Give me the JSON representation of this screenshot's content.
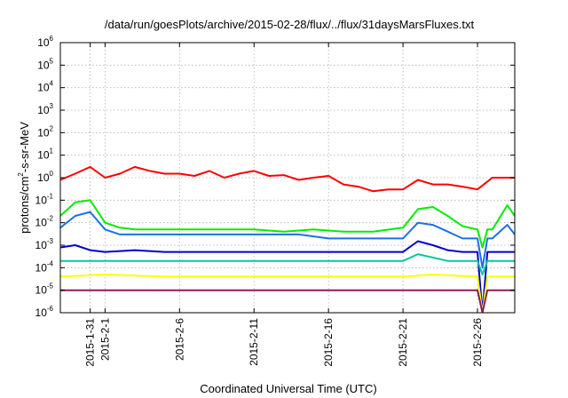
{
  "chart_data": {
    "type": "line",
    "title": "/data/run/goesPlots/archive/2015-02-28/flux/../flux/31daysMarsFluxes.txt",
    "xlabel": "Coordinated Universal Time (UTC)",
    "ylabel": "protons/cm2-s-sr-MeV",
    "ylabel_parts": {
      "a": "protons/cm",
      "sup": "2",
      "b": "-s-sr-MeV"
    },
    "yscale": "log",
    "ylim": [
      1e-06,
      1000000.0
    ],
    "xlim": [
      "2015-01-29",
      "2015-02-28T12:00"
    ],
    "grid": true,
    "y_ticks": [
      {
        "base": "10",
        "exp": "-6"
      },
      {
        "base": "10",
        "exp": "-5"
      },
      {
        "base": "10",
        "exp": "-4"
      },
      {
        "base": "10",
        "exp": "-3"
      },
      {
        "base": "10",
        "exp": "-2"
      },
      {
        "base": "10",
        "exp": "-1"
      },
      {
        "base": "10",
        "exp": "0"
      },
      {
        "base": "10",
        "exp": "1"
      },
      {
        "base": "10",
        "exp": "2"
      },
      {
        "base": "10",
        "exp": "3"
      },
      {
        "base": "10",
        "exp": "4"
      },
      {
        "base": "10",
        "exp": "5"
      },
      {
        "base": "10",
        "exp": "6"
      }
    ],
    "x_ticks": [
      {
        "date": "2015-01-31",
        "label": "2015-1-31"
      },
      {
        "date": "2015-02-01",
        "label": "2015-2-1"
      },
      {
        "date": "2015-02-06",
        "label": "2015-2-6"
      },
      {
        "date": "2015-02-11",
        "label": "2015-2-11"
      },
      {
        "date": "2015-02-16",
        "label": "2015-2-16"
      },
      {
        "date": "2015-02-21",
        "label": "2015-2-21"
      },
      {
        "date": "2015-02-26",
        "label": "2015-2-26"
      }
    ],
    "series": [
      {
        "color": "#ff0000",
        "points": [
          [
            "2015-01-29",
            0.8
          ],
          [
            "2015-01-30",
            1.5
          ],
          [
            "2015-01-31",
            3
          ],
          [
            "2015-02-01",
            1
          ],
          [
            "2015-02-02",
            1.5
          ],
          [
            "2015-02-03",
            3
          ],
          [
            "2015-02-04",
            2
          ],
          [
            "2015-02-05",
            1.5
          ],
          [
            "2015-02-06",
            1.5
          ],
          [
            "2015-02-07",
            1.2
          ],
          [
            "2015-02-08",
            2
          ],
          [
            "2015-02-09",
            1
          ],
          [
            "2015-02-10",
            1.5
          ],
          [
            "2015-02-11",
            2
          ],
          [
            "2015-02-12",
            1.2
          ],
          [
            "2015-02-13",
            1.3
          ],
          [
            "2015-02-14",
            0.8
          ],
          [
            "2015-02-15",
            1
          ],
          [
            "2015-02-16",
            1.2
          ],
          [
            "2015-02-17",
            0.5
          ],
          [
            "2015-02-18",
            0.4
          ],
          [
            "2015-02-19",
            0.25
          ],
          [
            "2015-02-20",
            0.3
          ],
          [
            "2015-02-21",
            0.3
          ],
          [
            "2015-02-22",
            0.8
          ],
          [
            "2015-02-23",
            0.5
          ],
          [
            "2015-02-24",
            0.5
          ],
          [
            "2015-02-25",
            0.4
          ],
          [
            "2015-02-26",
            0.3
          ],
          [
            "2015-02-27",
            1
          ],
          [
            "2015-02-28T12:00",
            1
          ]
        ]
      },
      {
        "color": "#00ee00",
        "points": [
          [
            "2015-01-29",
            0.02
          ],
          [
            "2015-01-30",
            0.08
          ],
          [
            "2015-01-31",
            0.1
          ],
          [
            "2015-02-01",
            0.01
          ],
          [
            "2015-02-02",
            0.006
          ],
          [
            "2015-02-03",
            0.005
          ],
          [
            "2015-02-05",
            0.005
          ],
          [
            "2015-02-07",
            0.005
          ],
          [
            "2015-02-09",
            0.005
          ],
          [
            "2015-02-11",
            0.005
          ],
          [
            "2015-02-13",
            0.004
          ],
          [
            "2015-02-15",
            0.005
          ],
          [
            "2015-02-17",
            0.004
          ],
          [
            "2015-02-19",
            0.004
          ],
          [
            "2015-02-21",
            0.006
          ],
          [
            "2015-02-22",
            0.04
          ],
          [
            "2015-02-23",
            0.05
          ],
          [
            "2015-02-24",
            0.02
          ],
          [
            "2015-02-25",
            0.007
          ],
          [
            "2015-02-26",
            0.005
          ],
          [
            "2015-02-26T08:00",
            0.0008
          ],
          [
            "2015-02-26T16:00",
            0.005
          ],
          [
            "2015-02-27",
            0.005
          ],
          [
            "2015-02-28",
            0.06
          ],
          [
            "2015-02-28T12:00",
            0.02
          ]
        ]
      },
      {
        "color": "#1e6fe6",
        "points": [
          [
            "2015-01-29",
            0.006
          ],
          [
            "2015-01-30",
            0.02
          ],
          [
            "2015-01-31",
            0.03
          ],
          [
            "2015-02-01",
            0.005
          ],
          [
            "2015-02-02",
            0.003
          ],
          [
            "2015-02-04",
            0.003
          ],
          [
            "2015-02-06",
            0.003
          ],
          [
            "2015-02-08",
            0.003
          ],
          [
            "2015-02-10",
            0.003
          ],
          [
            "2015-02-12",
            0.003
          ],
          [
            "2015-02-14",
            0.003
          ],
          [
            "2015-02-16",
            0.002
          ],
          [
            "2015-02-18",
            0.002
          ],
          [
            "2015-02-20",
            0.002
          ],
          [
            "2015-02-21",
            0.002
          ],
          [
            "2015-02-22",
            0.01
          ],
          [
            "2015-02-23",
            0.008
          ],
          [
            "2015-02-24",
            0.004
          ],
          [
            "2015-02-25",
            0.002
          ],
          [
            "2015-02-26",
            0.002
          ],
          [
            "2015-02-26T08:00",
            0.0001
          ],
          [
            "2015-02-26T16:00",
            0.002
          ],
          [
            "2015-02-27",
            0.002
          ],
          [
            "2015-02-28",
            0.008
          ],
          [
            "2015-02-28T12:00",
            0.003
          ]
        ]
      },
      {
        "color": "#0000cc",
        "points": [
          [
            "2015-01-29",
            0.0008
          ],
          [
            "2015-01-30",
            0.001
          ],
          [
            "2015-01-31",
            0.0006
          ],
          [
            "2015-02-01",
            0.0005
          ],
          [
            "2015-02-03",
            0.0006
          ],
          [
            "2015-02-05",
            0.0005
          ],
          [
            "2015-02-07",
            0.0005
          ],
          [
            "2015-02-09",
            0.0005
          ],
          [
            "2015-02-11",
            0.0005
          ],
          [
            "2015-02-13",
            0.0005
          ],
          [
            "2015-02-15",
            0.0005
          ],
          [
            "2015-02-17",
            0.0005
          ],
          [
            "2015-02-19",
            0.0005
          ],
          [
            "2015-02-21",
            0.0005
          ],
          [
            "2015-02-22",
            0.0015
          ],
          [
            "2015-02-23",
            0.001
          ],
          [
            "2015-02-24",
            0.0006
          ],
          [
            "2015-02-25",
            0.0005
          ],
          [
            "2015-02-26",
            0.0005
          ],
          [
            "2015-02-26T08:00",
            1e-06
          ],
          [
            "2015-02-26T16:00",
            0.0005
          ],
          [
            "2015-02-27",
            0.0005
          ],
          [
            "2015-02-28T12:00",
            0.0005
          ]
        ]
      },
      {
        "color": "#00c8a0",
        "points": [
          [
            "2015-01-29",
            0.0002
          ],
          [
            "2015-02-01",
            0.0002
          ],
          [
            "2015-02-05",
            0.0002
          ],
          [
            "2015-02-09",
            0.0002
          ],
          [
            "2015-02-13",
            0.0002
          ],
          [
            "2015-02-17",
            0.0002
          ],
          [
            "2015-02-21",
            0.0002
          ],
          [
            "2015-02-22",
            0.0004
          ],
          [
            "2015-02-24",
            0.0002
          ],
          [
            "2015-02-26",
            0.0002
          ],
          [
            "2015-02-26T08:00",
            5e-05
          ],
          [
            "2015-02-26T16:00",
            0.0002
          ],
          [
            "2015-02-28T12:00",
            0.0002
          ]
        ]
      },
      {
        "color": "#ffff00",
        "points": [
          [
            "2015-01-29",
            4e-05
          ],
          [
            "2015-02-01",
            5e-05
          ],
          [
            "2015-02-05",
            4e-05
          ],
          [
            "2015-02-09",
            4e-05
          ],
          [
            "2015-02-13",
            4e-05
          ],
          [
            "2015-02-17",
            4e-05
          ],
          [
            "2015-02-21",
            4e-05
          ],
          [
            "2015-02-23",
            5e-05
          ],
          [
            "2015-02-26",
            4e-05
          ],
          [
            "2015-02-26T08:00",
            1e-06
          ],
          [
            "2015-02-26T16:00",
            4e-05
          ],
          [
            "2015-02-28T12:00",
            4e-05
          ]
        ]
      },
      {
        "color": "#8b1a5a",
        "points": [
          [
            "2015-01-29",
            1e-05
          ],
          [
            "2015-02-01",
            1e-05
          ],
          [
            "2015-02-05",
            1e-05
          ],
          [
            "2015-02-09",
            1e-05
          ],
          [
            "2015-02-13",
            1e-05
          ],
          [
            "2015-02-17",
            1e-05
          ],
          [
            "2015-02-21",
            1e-05
          ],
          [
            "2015-02-24",
            1e-05
          ],
          [
            "2015-02-26",
            1e-05
          ],
          [
            "2015-02-26T08:00",
            1e-06
          ],
          [
            "2015-02-26T16:00",
            1e-05
          ],
          [
            "2015-02-28T12:00",
            1e-05
          ]
        ]
      }
    ]
  }
}
